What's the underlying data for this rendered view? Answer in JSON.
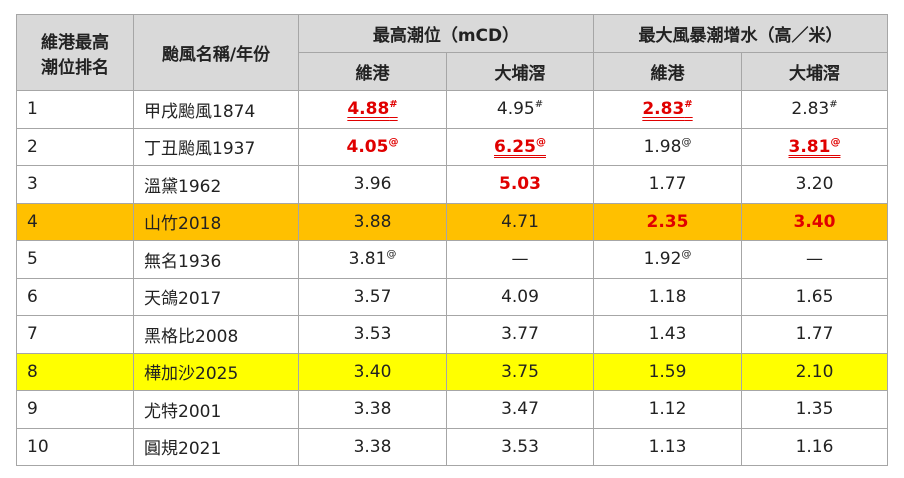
{
  "table": {
    "header": {
      "rank": [
        "維港最高",
        "潮位排名"
      ],
      "name": "颱風名稱/年份",
      "group1": "最高潮位（mCD）",
      "group2": "最大風暴潮增水（高／米）",
      "sub": [
        "維港",
        "大埔滘",
        "維港",
        "大埔滘"
      ]
    },
    "rows": [
      {
        "rank": "1",
        "name": "甲戌颱風1874",
        "cells": [
          {
            "value": "4.88",
            "sup": "#",
            "red": true,
            "underline": true
          },
          {
            "value": "4.95",
            "sup": "#"
          },
          {
            "value": "2.83",
            "sup": "#",
            "red": true,
            "underline": true
          },
          {
            "value": "2.83",
            "sup": "#"
          }
        ]
      },
      {
        "rank": "2",
        "name": "丁丑颱風1937",
        "cells": [
          {
            "value": "4.05",
            "sup": "@",
            "red": true
          },
          {
            "value": "6.25",
            "sup": "@",
            "red": true,
            "underline": true
          },
          {
            "value": "1.98",
            "sup": "@"
          },
          {
            "value": "3.81",
            "sup": "@",
            "red": true,
            "underline": true
          }
        ]
      },
      {
        "rank": "3",
        "name": "溫黛1962",
        "cells": [
          {
            "value": "3.96"
          },
          {
            "value": "5.03",
            "red": true
          },
          {
            "value": "1.77"
          },
          {
            "value": "3.20"
          }
        ]
      },
      {
        "rank": "4",
        "name": "山竹2018",
        "highlight": "#ffc000",
        "cells": [
          {
            "value": "3.88"
          },
          {
            "value": "4.71"
          },
          {
            "value": "2.35",
            "red": true
          },
          {
            "value": "3.40",
            "red": true
          }
        ]
      },
      {
        "rank": "5",
        "name": "無名1936",
        "cells": [
          {
            "value": "3.81",
            "sup": "@"
          },
          {
            "value": "—"
          },
          {
            "value": "1.92",
            "sup": "@"
          },
          {
            "value": "—"
          }
        ]
      },
      {
        "rank": "6",
        "name": "天鴿2017",
        "cells": [
          {
            "value": "3.57"
          },
          {
            "value": "4.09"
          },
          {
            "value": "1.18"
          },
          {
            "value": "1.65"
          }
        ]
      },
      {
        "rank": "7",
        "name": "黑格比2008",
        "cells": [
          {
            "value": "3.53"
          },
          {
            "value": "3.77"
          },
          {
            "value": "1.43"
          },
          {
            "value": "1.77"
          }
        ]
      },
      {
        "rank": "8",
        "name": "樺加沙2025",
        "highlight": "#ffff00",
        "cells": [
          {
            "value": "3.40"
          },
          {
            "value": "3.75"
          },
          {
            "value": "1.59"
          },
          {
            "value": "2.10"
          }
        ]
      },
      {
        "rank": "9",
        "name": "尤特2001",
        "cells": [
          {
            "value": "3.38"
          },
          {
            "value": "3.47"
          },
          {
            "value": "1.12"
          },
          {
            "value": "1.35"
          }
        ]
      },
      {
        "rank": "10",
        "name": "圓規2021",
        "cells": [
          {
            "value": "3.38"
          },
          {
            "value": "3.53"
          },
          {
            "value": "1.13"
          },
          {
            "value": "1.16"
          }
        ]
      }
    ]
  }
}
